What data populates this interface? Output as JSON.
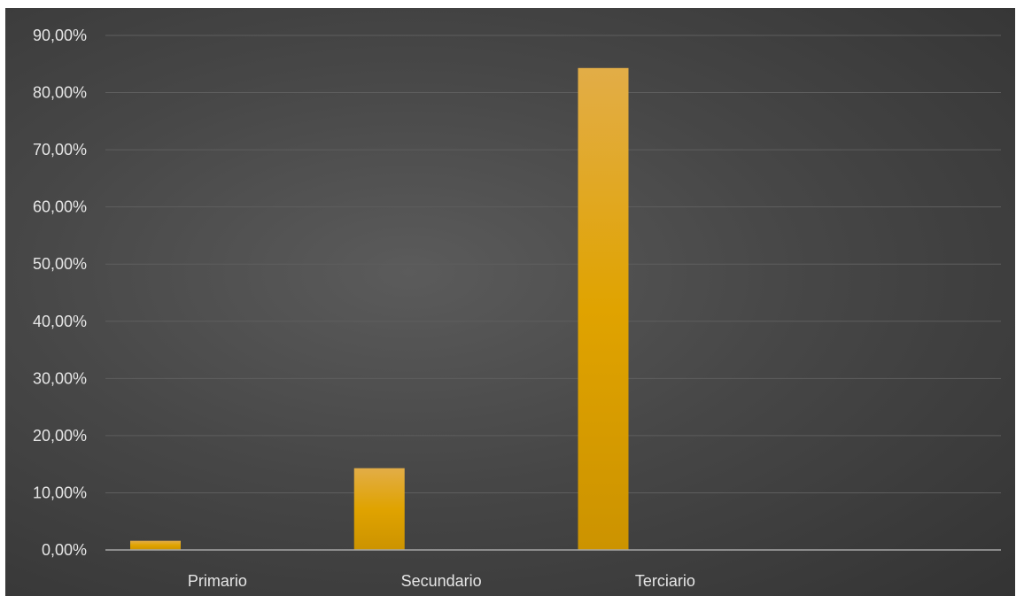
{
  "chart_data": {
    "type": "bar",
    "title": "",
    "xlabel": "",
    "ylabel": "",
    "categories": [
      "Primario",
      "Secundario",
      "Terciario",
      ""
    ],
    "values": [
      1.6,
      14.3,
      84.3,
      0
    ],
    "ylim": [
      0,
      90
    ],
    "yticks": [
      0,
      10,
      20,
      30,
      40,
      50,
      60,
      70,
      80,
      90
    ],
    "ytick_labels": [
      "0,00%",
      "10,00%",
      "20,00%",
      "30,00%",
      "40,00%",
      "50,00%",
      "60,00%",
      "70,00%",
      "80,00%",
      "90,00%"
    ],
    "grid": true,
    "legend": "none",
    "colors": {
      "bar_top": "#e2ad47",
      "bar_mid": "#e0a300",
      "bar_bottom": "#cc9300",
      "background": "#454545",
      "text": "#e6e6e6"
    }
  }
}
